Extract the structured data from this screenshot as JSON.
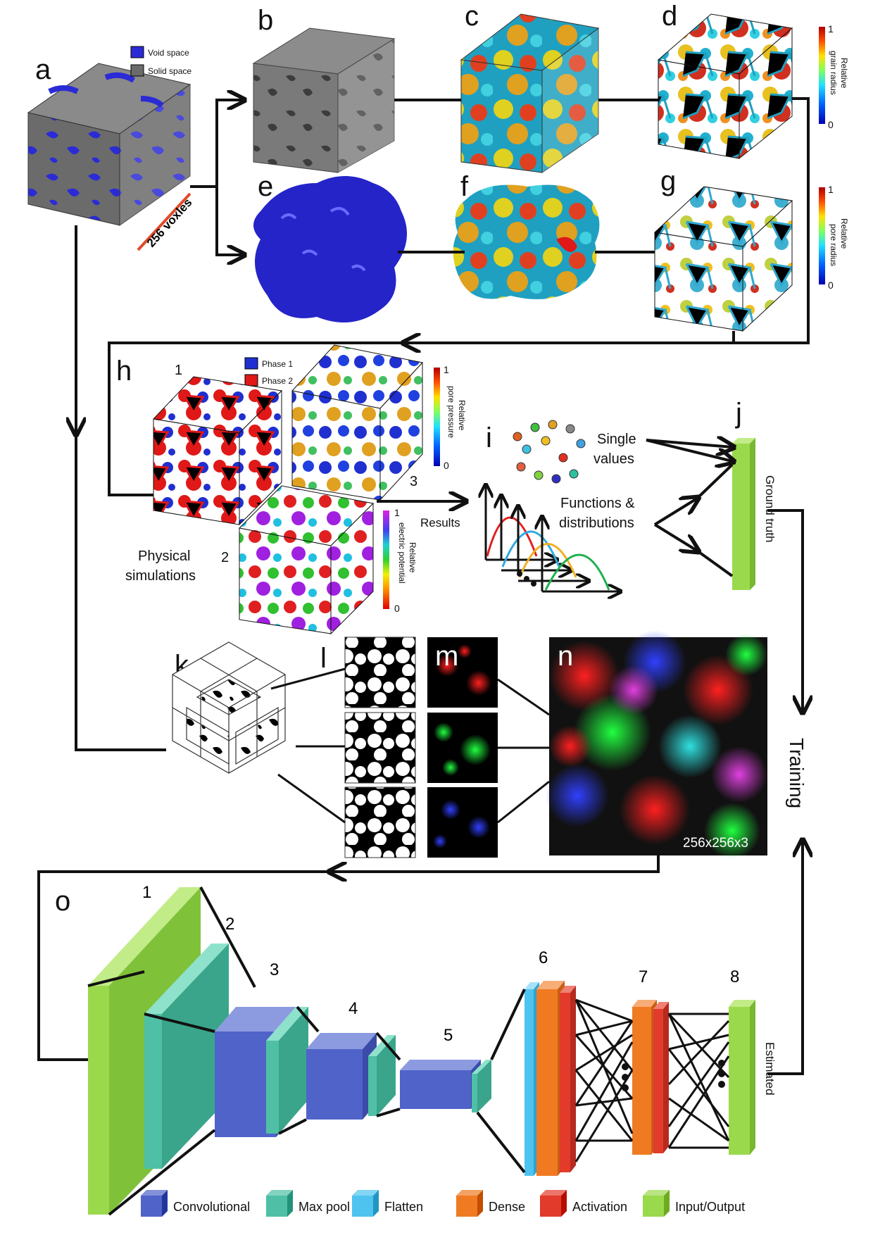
{
  "panels": {
    "a": "a",
    "b": "b",
    "c": "c",
    "d": "d",
    "e": "e",
    "f": "f",
    "g": "g",
    "h": "h",
    "i": "i",
    "j": "j",
    "k": "k",
    "l": "l",
    "m": "m",
    "n": "n",
    "o": "o"
  },
  "legend_a": {
    "void": "Void space",
    "solid": "Solid space"
  },
  "colors": {
    "void": "#2b2bd6",
    "solid": "#6b6b6b",
    "phase1": "#1f2fd0",
    "phase2": "#e01818",
    "convolutional": "#4f63c9",
    "maxpool": "#4fc0a5",
    "flatten": "#4fc3ef",
    "dense": "#f07a22",
    "activation": "#e23b2b",
    "inputoutput": "#9ad94c"
  },
  "scale_label": "256 voxles",
  "colorbar_d": {
    "max": "1",
    "min": "0",
    "label_line1": "Relative",
    "label_line2": "grain radius"
  },
  "colorbar_g": {
    "max": "1",
    "min": "0",
    "label_line1": "Relative",
    "label_line2": "pore radius"
  },
  "colorbar_h3": {
    "max": "1",
    "min": "0",
    "label_line1": "Relative",
    "label_line2": "pore pressure"
  },
  "colorbar_h2": {
    "max": "1",
    "min": "0",
    "label_line1": "Relative",
    "label_line2": "electric potential"
  },
  "h_legend": {
    "phase1": "Phase 1",
    "phase2": "Phase 2"
  },
  "h_numbers": {
    "n1": "1",
    "n2": "2",
    "n3": "3"
  },
  "physical": {
    "line1": "Physical",
    "line2": "simulations"
  },
  "results": "Results",
  "single_values": {
    "line1": "Single",
    "line2": "values"
  },
  "functions": {
    "line1": "Functions &",
    "line2": "distributions"
  },
  "ground_truth": "Ground truth",
  "training": "Training",
  "estimated": "Estimated",
  "n_size": "256x256x3",
  "layer_numbers": [
    "1",
    "2",
    "3",
    "4",
    "5",
    "6",
    "7",
    "8"
  ],
  "legend": [
    {
      "key": "convolutional",
      "label": "Convolutional"
    },
    {
      "key": "maxpool",
      "label": "Max pool"
    },
    {
      "key": "flatten",
      "label": "Flatten"
    },
    {
      "key": "dense",
      "label": "Dense"
    },
    {
      "key": "activation",
      "label": "Activation"
    },
    {
      "key": "inputoutput",
      "label": "Input/Output"
    }
  ]
}
